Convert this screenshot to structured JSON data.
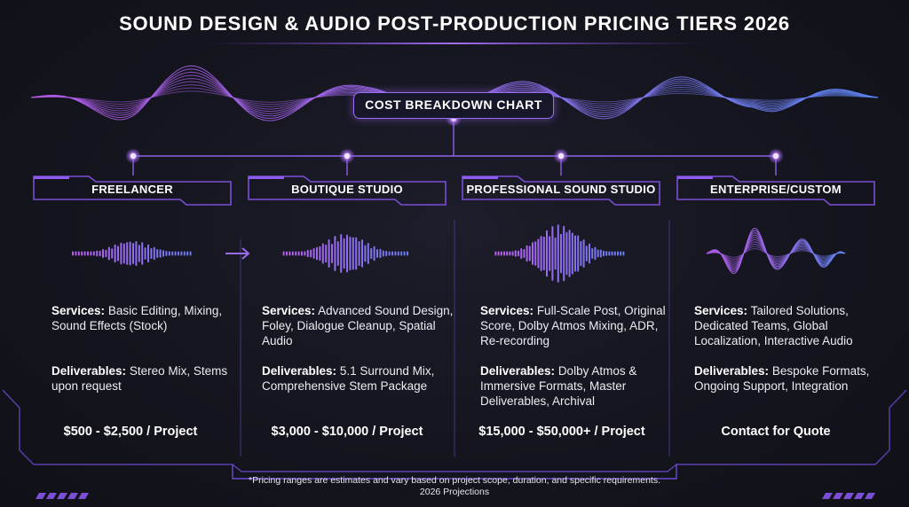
{
  "title": "SOUND DESIGN & AUDIO POST-PRODUCTION PRICING TIERS 2026",
  "center_label": "COST BREAKDOWN CHART",
  "labels": {
    "services": "Services:",
    "deliverables": "Deliverables:"
  },
  "tiers": [
    {
      "name": "FREELANCER",
      "services": "Basic Editing, Mixing, Sound Effects (Stock)",
      "deliverables": "Stereo Mix, Stems upon request",
      "price": "$500 - $2,500 / Project"
    },
    {
      "name": "BOUTIQUE STUDIO",
      "services": "Advanced Sound Design, Foley, Dialogue Cleanup, Spatial Audio",
      "deliverables": "5.1 Surround Mix, Comprehensive Stem Package",
      "price": "$3,000 - $10,000 / Project"
    },
    {
      "name": "PROFESSIONAL SOUND STUDIO",
      "services": "Full-Scale Post, Original Score, Dolby Atmos Mixing, ADR, Re-recording",
      "deliverables": "Dolby Atmos & Immersive Formats, Master Deliverables, Archival",
      "price": "$15,000 - $50,000+ / Project"
    },
    {
      "name": "ENTERPRISE/CUSTOM",
      "services": "Tailored Solutions, Dedicated Teams, Global Localization, Interactive Audio",
      "deliverables": "Bespoke Formats, Ongoing Support, Integration",
      "price": "Contact for Quote"
    }
  ],
  "footnote": {
    "line1": "*Pricing ranges are estimates and vary based on project scope, duration, and specific requirements.",
    "line2": "2026 Projections"
  },
  "colors": {
    "accent_purple": "#a560f0",
    "accent_blue": "#5f7ef0",
    "frame_purple": "#7a4fd6",
    "background": "#15151f"
  }
}
